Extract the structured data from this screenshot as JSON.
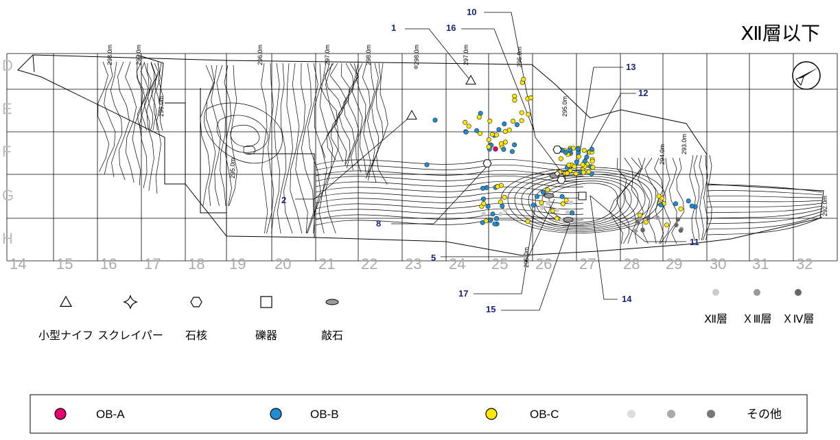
{
  "title": "Ⅻ層以下",
  "row_labels": [
    "D",
    "E",
    "F",
    "G",
    "H"
  ],
  "col_labels": [
    "14",
    "15",
    "16",
    "17",
    "18",
    "19",
    "20",
    "21",
    "22",
    "23",
    "24",
    "25",
    "26",
    "27",
    "28",
    "29",
    "30",
    "31",
    "32"
  ],
  "contour_labels": [
    {
      "text": "298.0m"
    },
    {
      "text": "297.0m"
    },
    {
      "text": "296.0m"
    },
    {
      "text": "296.0m"
    },
    {
      "text": "297.0m"
    },
    {
      "text": "298.0m"
    },
    {
      "text": "298.0m"
    },
    {
      "text": "297.0m"
    },
    {
      "text": "296.0m"
    },
    {
      "text": "295.0m"
    },
    {
      "text": "295.0m"
    },
    {
      "text": "294.0m"
    },
    {
      "text": "293.0m"
    },
    {
      "text": "292.0m"
    },
    {
      "text": "295.0m"
    }
  ],
  "callouts": [
    "1",
    "16",
    "10",
    "13",
    "12",
    "2",
    "8",
    "5",
    "17",
    "15",
    "14",
    "11"
  ],
  "tool_types": [
    {
      "symbol": "triangle",
      "label": "小型ナイフ"
    },
    {
      "symbol": "diamond-star",
      "label": "スクレイパー"
    },
    {
      "symbol": "hexagon",
      "label": "石核"
    },
    {
      "symbol": "square",
      "label": "礫器"
    },
    {
      "symbol": "ellipse",
      "label": "敲石"
    }
  ],
  "layer_legend": [
    {
      "label": "Ⅻ層",
      "color": "#cccccc"
    },
    {
      "label": "ＸⅢ層",
      "color": "#999999"
    },
    {
      "label": "ＸⅣ層",
      "color": "#666666"
    }
  ],
  "material_legend": [
    {
      "label": "OB-A",
      "color": "#e6006e"
    },
    {
      "label": "OB-B",
      "color": "#1e8fd6"
    },
    {
      "label": "OB-C",
      "color": "#ffe800"
    },
    {
      "label": "その他",
      "color": "#888888"
    }
  ],
  "north_arrow": "north-arrow-icon"
}
